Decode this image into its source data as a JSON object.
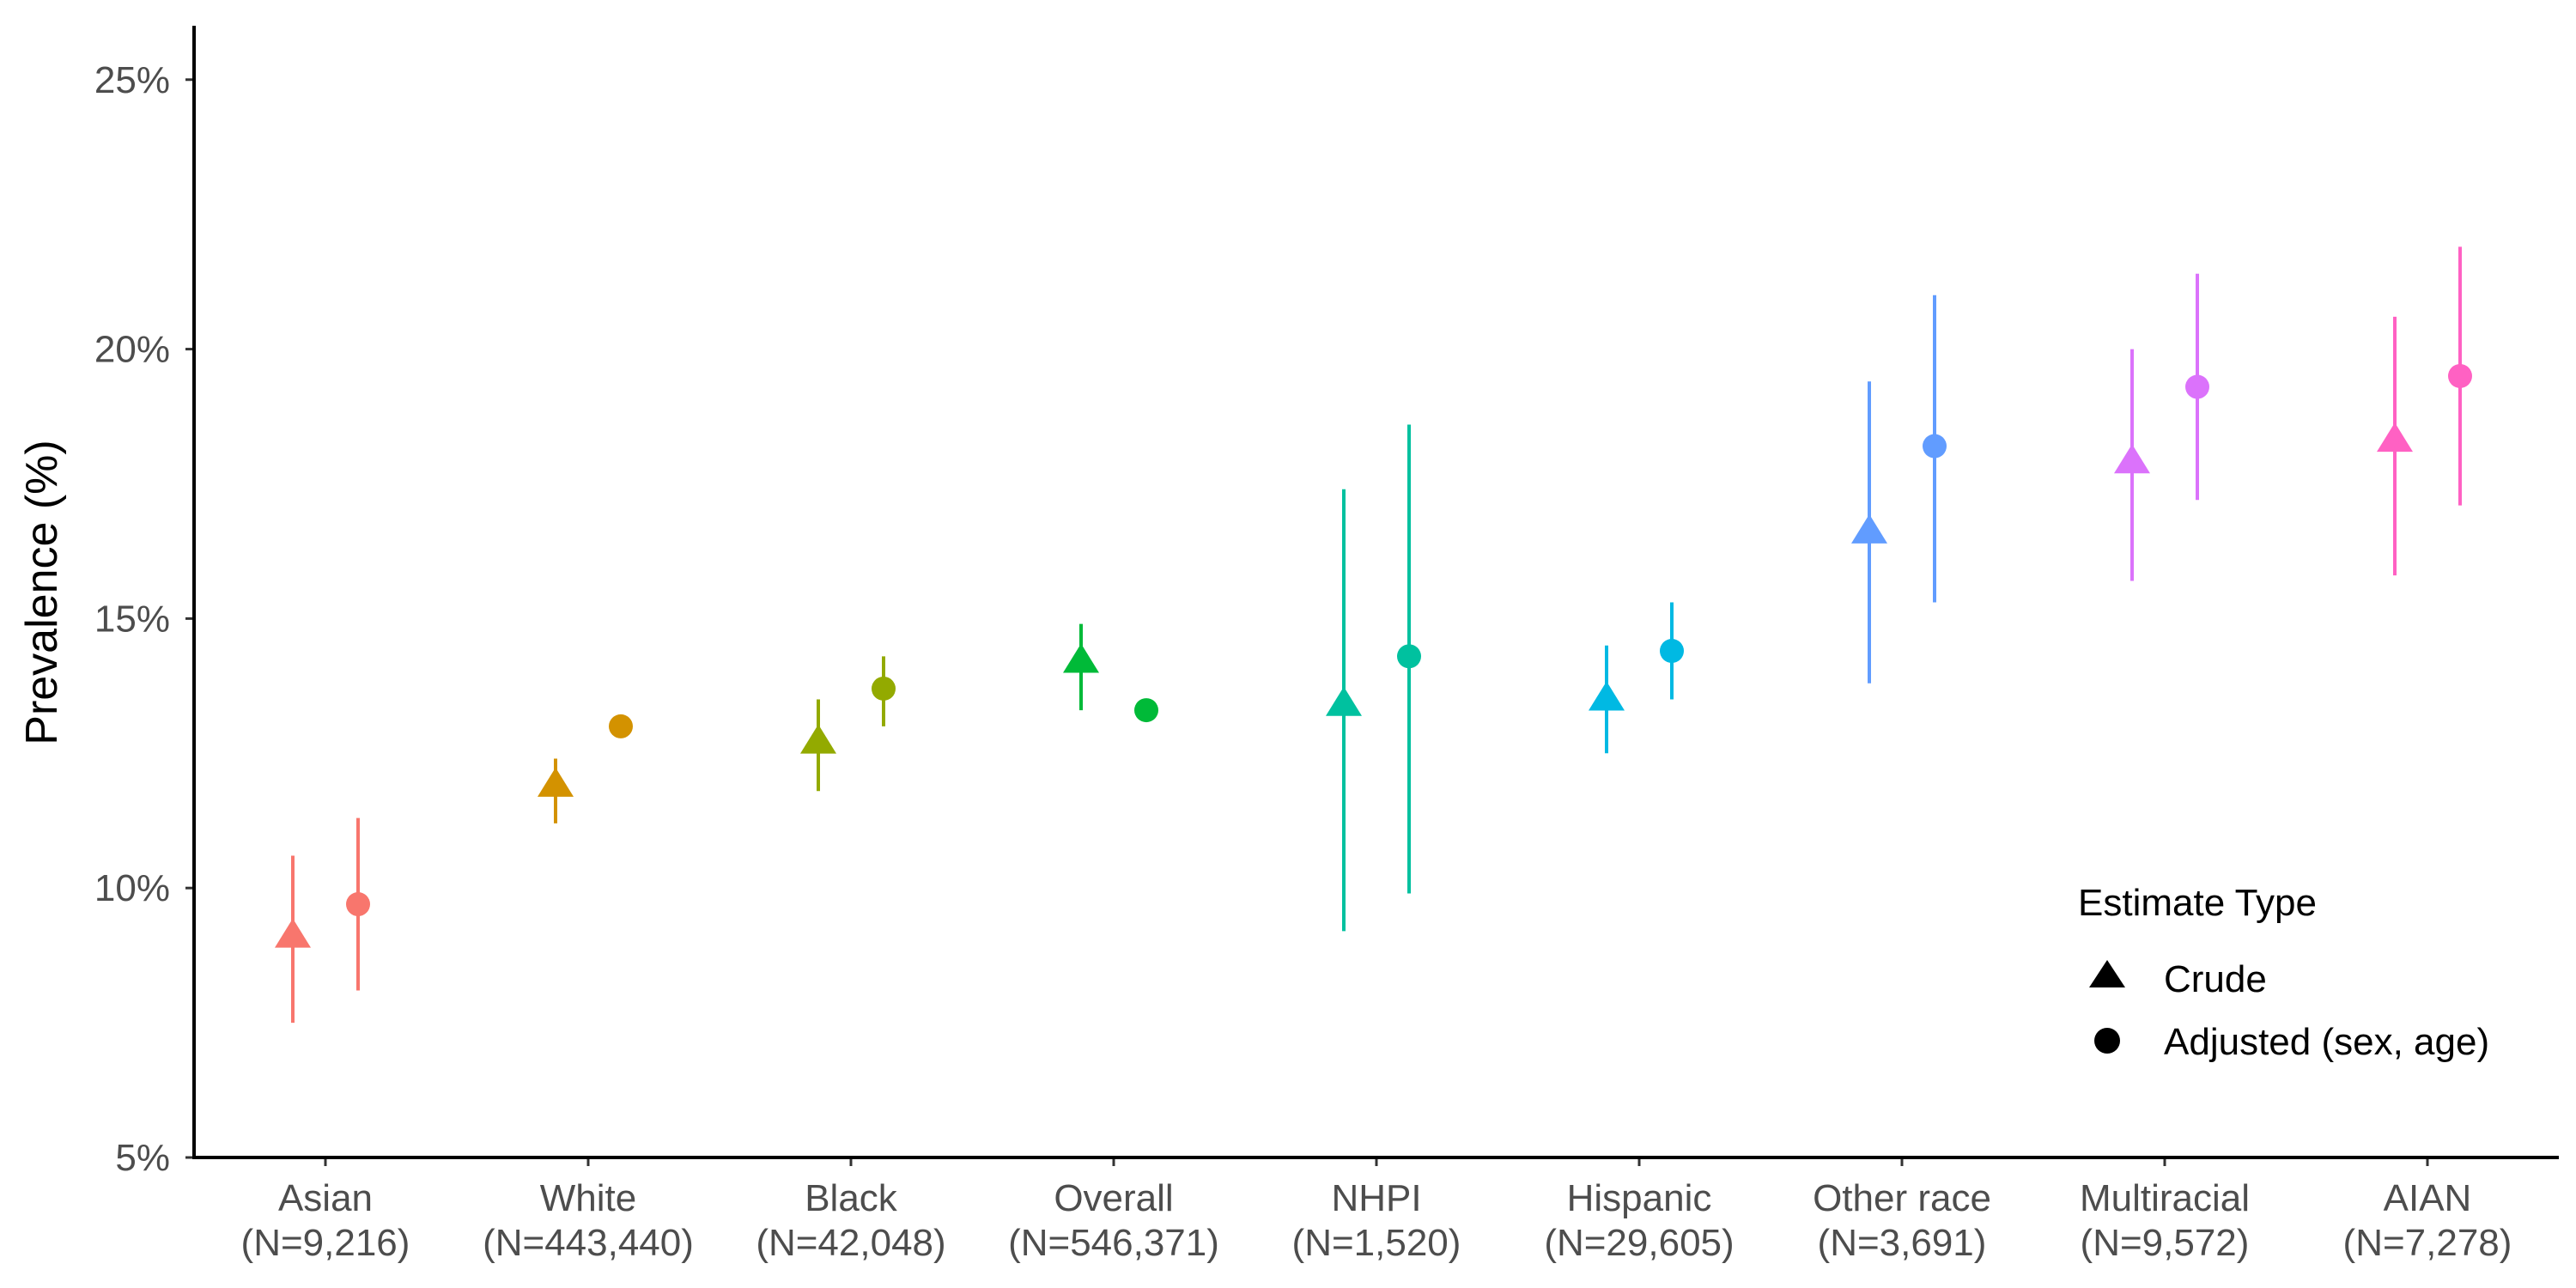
{
  "chart_data": {
    "type": "scatter",
    "ylabel": "Prevalence (%)",
    "xlabel": "",
    "ylim": [
      5,
      26
    ],
    "y_ticks": [
      5,
      10,
      15,
      20,
      25
    ],
    "y_tick_labels": [
      "5%",
      "10%",
      "15%",
      "20%",
      "25%"
    ],
    "grid": false,
    "categories": [
      {
        "name": "Asian",
        "n": "(N=9,216)",
        "color": "#F8766D"
      },
      {
        "name": "White",
        "n": "(N=443,440)",
        "color": "#D39200"
      },
      {
        "name": "Black",
        "n": "(N=42,048)",
        "color": "#93AA00"
      },
      {
        "name": "Overall",
        "n": "(N=546,371)",
        "color": "#00BA38"
      },
      {
        "name": "NHPI",
        "n": "(N=1,520)",
        "color": "#00C19F"
      },
      {
        "name": "Hispanic",
        "n": "(N=29,605)",
        "color": "#00B9E3"
      },
      {
        "name": "Other race",
        "n": "(N=3,691)",
        "color": "#619CFF"
      },
      {
        "name": "Multiracial",
        "n": "(N=9,572)",
        "color": "#DB72FB"
      },
      {
        "name": "AIAN",
        "n": "(N=7,278)",
        "color": "#FF61C3"
      }
    ],
    "series": [
      {
        "name": "Crude",
        "shape": "triangle",
        "values": [
          9.1,
          11.9,
          12.7,
          14.2,
          13.4,
          13.5,
          16.6,
          17.9,
          18.3
        ],
        "lower": [
          7.5,
          11.2,
          11.8,
          13.3,
          9.2,
          12.5,
          13.8,
          15.7,
          15.8
        ],
        "upper": [
          10.6,
          12.4,
          13.5,
          14.9,
          17.4,
          14.5,
          19.4,
          20.0,
          20.6
        ]
      },
      {
        "name": "Adjusted (sex, age)",
        "shape": "circle",
        "values": [
          9.7,
          13.0,
          13.7,
          13.3,
          14.3,
          14.4,
          18.2,
          19.3,
          19.5
        ],
        "lower": [
          8.1,
          13.0,
          13.0,
          13.3,
          9.9,
          13.5,
          15.3,
          17.2,
          17.1
        ],
        "upper": [
          11.3,
          13.0,
          14.3,
          13.3,
          18.6,
          15.3,
          21.0,
          21.4,
          21.9
        ]
      }
    ],
    "legend": {
      "title": "Estimate Type",
      "placement": "bottom-right"
    }
  }
}
